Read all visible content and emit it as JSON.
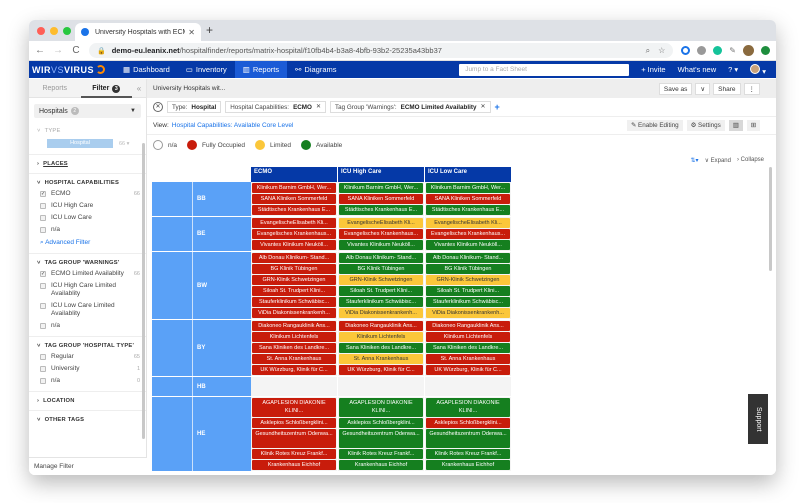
{
  "browser": {
    "tab_title": "University Hospitals with ECMO",
    "url_host": "demo-eu.leanix.net",
    "url_path": "/hospitalfinder/reports/matrix-hospital/f10fb4b4-b3a8-4bfb-93b2-25235a43bb37",
    "traffic_lights": [
      "#ff5f57",
      "#febc2e",
      "#28c840"
    ]
  },
  "appnav": {
    "logo_bold": "WIR",
    "logo_vs": "VS",
    "logo_end": "VIRUS",
    "items": [
      {
        "icon": "dashboard-icon",
        "glyph": "▦",
        "label": "Dashboard"
      },
      {
        "icon": "inventory-icon",
        "glyph": "▭",
        "label": "Inventory"
      },
      {
        "icon": "reports-icon",
        "glyph": "▥",
        "label": "Reports",
        "active": true
      },
      {
        "icon": "diagrams-icon",
        "glyph": "⚯",
        "label": "Diagrams"
      }
    ],
    "search_placeholder": "Jump to a Fact Sheet",
    "invite": "+ Invite",
    "whats_new": "What's new",
    "help": "? ▾"
  },
  "sidebar": {
    "tabs": [
      "Reports",
      "Filter"
    ],
    "filter_badge": "3",
    "collapse": "«",
    "factsheet_select": "Hospitals",
    "factsheet_count": "2",
    "type_header": "TYPE",
    "type_value": "Hospital",
    "type_count": "66 ▾",
    "places": "PLACES",
    "capabilities": {
      "header": "HOSPITAL CAPABILITIES",
      "options": [
        {
          "label": "ECMO",
          "checked": true,
          "count": "66"
        },
        {
          "label": "ICU High Care",
          "checked": false,
          "count": ""
        },
        {
          "label": "ICU Low Care",
          "checked": false,
          "count": ""
        },
        {
          "label": "n/a",
          "checked": false,
          "count": ""
        }
      ],
      "advanced": "Advanced Filter"
    },
    "warnings": {
      "header": "TAG GROUP 'WARNINGS'",
      "options": [
        {
          "label": "ECMO Limited Availablity",
          "checked": true,
          "count": "66"
        },
        {
          "label": "ICU High Care Limited Availablity",
          "checked": false,
          "count": ""
        },
        {
          "label": "ICU Low Care Limited Availablity",
          "checked": false,
          "count": ""
        },
        {
          "label": "n/a",
          "checked": false,
          "count": ""
        }
      ]
    },
    "hospital_type": {
      "header": "TAG GROUP 'HOSPITAL TYPE'",
      "options": [
        {
          "label": "Regular",
          "checked": false,
          "count": "65"
        },
        {
          "label": "University",
          "checked": false,
          "count": "1"
        },
        {
          "label": "n/a",
          "checked": false,
          "count": "0"
        }
      ]
    },
    "location": "LOCATION",
    "other_tags": "OTHER TAGS",
    "manage_filter": "Manage Filter"
  },
  "main": {
    "breadcrumb": "University Hospitals wit...",
    "save_as": "Save as",
    "save_caret": "∨",
    "share": "Share",
    "more": "⋮",
    "chips": [
      {
        "prefix": "Type:",
        "value": "Hospital",
        "closable": false
      },
      {
        "prefix": "Hospital Capabilities:",
        "value": "ECMO",
        "closable": true
      },
      {
        "prefix": "Tag Group 'Warnings':",
        "value": "ECMO Limited Availablity",
        "closable": true
      }
    ],
    "view_label": "View:",
    "view_value": "Hospital Capabilities: Available Core Level",
    "enable_editing": "✎ Enable Editing",
    "settings": "⚙ Settings",
    "legend": [
      {
        "label": "n/a",
        "color": "#ffffff"
      },
      {
        "label": "Fully Occupied",
        "color": "#c81c0b"
      },
      {
        "label": "Limited",
        "color": "#fbc73a"
      },
      {
        "label": "Available",
        "color": "#157f1f"
      }
    ],
    "sort": "⇅▾",
    "expand": "∨ Expand",
    "collapse": "› Collapse",
    "support": "Support"
  },
  "matrix": {
    "columns": [
      "ECMO",
      "ICU High Care",
      "ICU Low Care"
    ],
    "groups": [
      {
        "state": "BB",
        "rows": [
          {
            "name": "Klinikum Barnim GmbH, Wer...",
            "status": [
              "red",
              "green",
              "green"
            ]
          },
          {
            "name": "SANA Kliniken Sommerfeld",
            "status": [
              "red",
              "red",
              "red"
            ]
          },
          {
            "name": "Städtisches Krankenhaus E...",
            "status": [
              "red",
              "green",
              "green"
            ]
          }
        ]
      },
      {
        "state": "BE",
        "rows": [
          {
            "name": "EvangelischeElisabeth Kli...",
            "status": [
              "red",
              "yellow",
              "yellow"
            ]
          },
          {
            "name": "Evangelisches Krankenhaus...",
            "status": [
              "red",
              "red",
              "red"
            ]
          },
          {
            "name": "Vivantes Klinikum Neuköll...",
            "status": [
              "red",
              "green",
              "green"
            ]
          }
        ]
      },
      {
        "state": "BW",
        "rows": [
          {
            "name": "Alb Donau Klinikum- Stand...",
            "status": [
              "red",
              "green",
              "green"
            ]
          },
          {
            "name": "BG Klinik Tübingen",
            "status": [
              "red",
              "green",
              "green"
            ]
          },
          {
            "name": "GRN-Klinik Schwetzingen",
            "status": [
              "red",
              "yellow",
              "yellow"
            ]
          },
          {
            "name": "Siloah St. Trudpert Klini...",
            "status": [
              "red",
              "green",
              "green"
            ]
          },
          {
            "name": "Stauferklinikum Schwäbisc...",
            "status": [
              "red",
              "green",
              "green"
            ]
          },
          {
            "name": "ViDia Diakonissenkrankenh...",
            "status": [
              "red",
              "yellow",
              "yellow"
            ]
          }
        ]
      },
      {
        "state": "BY",
        "rows": [
          {
            "name": "Diakoneo Rangauklinik Ans...",
            "status": [
              "red",
              "red",
              "red"
            ]
          },
          {
            "name": "Klinikum Lichtenfels",
            "status": [
              "red",
              "yellow",
              "red"
            ]
          },
          {
            "name": "Sana Kliniken des Landkre...",
            "status": [
              "red",
              "green",
              "green"
            ]
          },
          {
            "name": "St. Anna Krankenhaus",
            "status": [
              "red",
              "yellow",
              "red"
            ]
          },
          {
            "name": "UK Würzburg, Klinik für C...",
            "status": [
              "red",
              "red",
              "red"
            ]
          }
        ]
      },
      {
        "state": "HB",
        "rows": []
      },
      {
        "state": "HE",
        "rows": [
          {
            "name": "AGAPLESION DIAKONIE KLINI...",
            "tall": true,
            "status": [
              "red",
              "green",
              "green"
            ]
          },
          {
            "name": "Asklepios Schloßbergklini...",
            "status": [
              "red",
              "green",
              "red"
            ]
          },
          {
            "name": "Gesundheitszentrum Odenwa...",
            "tall": true,
            "status": [
              "red",
              "green",
              "green"
            ]
          },
          {
            "name": "Klinik Rotes Kreuz Frankf...",
            "status": [
              "red",
              "green",
              "green"
            ]
          },
          {
            "name": "Krankenhaus Eichhof",
            "status": [
              "red",
              "green",
              "green"
            ]
          }
        ]
      }
    ]
  }
}
